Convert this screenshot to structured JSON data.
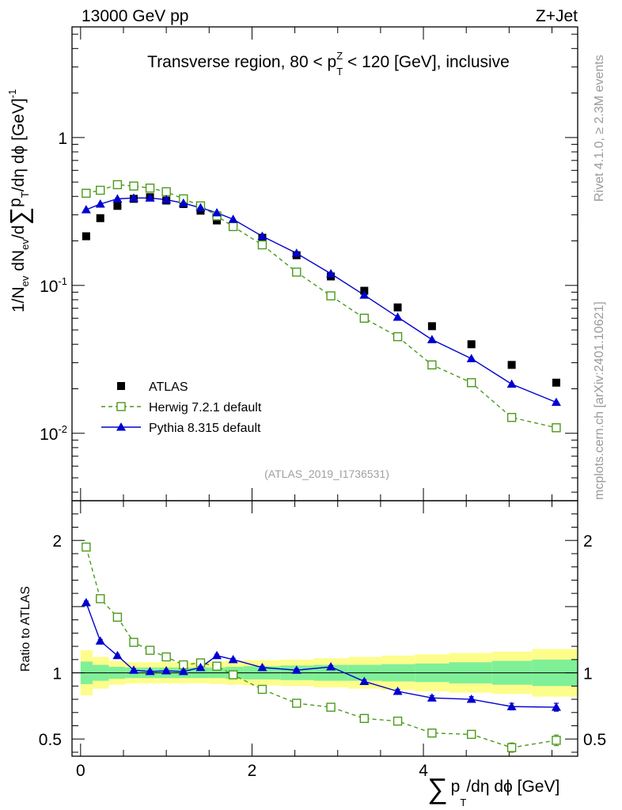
{
  "header": {
    "left": "13000 GeV pp",
    "right": "Z+Jet"
  },
  "side_notes": {
    "rivet": "Rivet 4.1.0, ≥ 2.3M events",
    "mcplots": "mcplots.cern.ch [arXiv:2401.10621]"
  },
  "chart_data": {
    "type": "scatter",
    "title": "Transverse region, 80 < p_T^Z < 120 [GeV], inclusive",
    "title_parts": {
      "pre": "Transverse region, 80 < p",
      "sub": "T",
      "sup": "Z",
      "post": " < 120 [GeV], inclusive"
    },
    "analysis_tag": "(ATLAS_2019_I1736531)",
    "xlabel": {
      "sym": "∑",
      "p": "p",
      "sub": "T",
      "rest": "/dη dϕ [GeV]"
    },
    "ylabel_main": {
      "a": "1/N",
      "a_sub": "ev",
      "b": " dN",
      "b_sub": "ev",
      "c": "/d",
      "sym": "∑",
      "p": "p",
      "p_sub": "T",
      "d": "/dη dϕ  [GeV]",
      "sup": "-1"
    },
    "ylabel_ratio": "Ratio to ATLAS",
    "xlim": [
      -0.1,
      5.8
    ],
    "ylim_main": [
      0.0035,
      5.6
    ],
    "ylim_ratio": [
      0.37,
      2.3
    ],
    "x_ticks": [
      0,
      2,
      4
    ],
    "x_tick_labels": [
      "0",
      "2",
      "4"
    ],
    "main_ticks": [
      {
        "value": 0.01,
        "base": "10",
        "exp": "-2"
      },
      {
        "value": 0.1,
        "base": "10",
        "exp": "-1"
      },
      {
        "value": 1,
        "base": "1",
        "exp": ""
      }
    ],
    "ratio_ticks": [
      {
        "value": 0.5,
        "label": "0.5"
      },
      {
        "value": 1,
        "label": "1"
      },
      {
        "value": 2,
        "label": "2"
      }
    ],
    "x": [
      0.065,
      0.23,
      0.43,
      0.62,
      0.81,
      1.0,
      1.2,
      1.4,
      1.59,
      1.78,
      2.12,
      2.52,
      2.92,
      3.31,
      3.7,
      4.1,
      4.56,
      5.03,
      5.55
    ],
    "bin_edges": [
      0.0,
      0.14,
      0.33,
      0.52,
      0.71,
      0.9,
      1.1,
      1.3,
      1.5,
      1.69,
      1.9,
      2.33,
      2.72,
      3.12,
      3.51,
      3.9,
      4.3,
      4.8,
      5.27,
      5.8
    ],
    "atlas_band_inner": [
      0.085,
      0.06,
      0.045,
      0.04,
      0.04,
      0.04,
      0.04,
      0.04,
      0.04,
      0.045,
      0.05,
      0.055,
      0.06,
      0.06,
      0.065,
      0.07,
      0.08,
      0.09,
      0.1
    ],
    "atlas_band_outer": [
      0.17,
      0.12,
      0.09,
      0.08,
      0.08,
      0.08,
      0.08,
      0.08,
      0.085,
      0.09,
      0.095,
      0.1,
      0.11,
      0.12,
      0.13,
      0.14,
      0.15,
      0.16,
      0.18
    ],
    "series": [
      {
        "name": "ATLAS",
        "color": "#000000",
        "marker": "filled-square",
        "values": [
          0.215,
          0.285,
          0.345,
          0.385,
          0.395,
          0.375,
          0.355,
          0.32,
          0.275,
          0.255,
          0.21,
          0.16,
          0.115,
          0.092,
          0.071,
          0.053,
          0.04,
          0.029,
          0.022
        ]
      },
      {
        "name": "Herwig 7.2.1 default",
        "color": "#4a9a1a",
        "marker": "open-square",
        "line": "dashed",
        "values": [
          0.42,
          0.44,
          0.48,
          0.47,
          0.455,
          0.43,
          0.385,
          0.345,
          0.295,
          0.25,
          0.188,
          0.123,
          0.085,
          0.06,
          0.045,
          0.029,
          0.022,
          0.0128,
          0.0109
        ],
        "ratio": [
          1.95,
          1.56,
          1.42,
          1.23,
          1.17,
          1.12,
          1.06,
          1.075,
          1.05,
          0.985,
          0.875,
          0.77,
          0.74,
          0.655,
          0.635,
          0.545,
          0.535,
          0.435,
          0.49
        ],
        "ratio_err": [
          0.015,
          0.015,
          0.012,
          0.012,
          0.012,
          0.012,
          0.012,
          0.012,
          0.012,
          0.012,
          0.012,
          0.012,
          0.012,
          0.012,
          0.012,
          0.015,
          0.025,
          0.035,
          0.04
        ]
      },
      {
        "name": "Pythia 8.315 default",
        "color": "#0000d0",
        "marker": "filled-triangle",
        "line": "solid",
        "values": [
          0.325,
          0.355,
          0.385,
          0.39,
          0.39,
          0.38,
          0.36,
          0.335,
          0.31,
          0.28,
          0.215,
          0.165,
          0.12,
          0.086,
          0.061,
          0.043,
          0.032,
          0.0215,
          0.0162
        ],
        "ratio": [
          1.53,
          1.24,
          1.13,
          1.02,
          1.01,
          1.015,
          1.01,
          1.04,
          1.13,
          1.1,
          1.04,
          1.02,
          1.045,
          0.935,
          0.86,
          0.81,
          0.8,
          0.745,
          0.74
        ],
        "ratio_err": [
          0.012,
          0.012,
          0.01,
          0.01,
          0.01,
          0.01,
          0.01,
          0.01,
          0.01,
          0.01,
          0.01,
          0.01,
          0.01,
          0.012,
          0.015,
          0.018,
          0.02,
          0.025,
          0.03
        ]
      }
    ],
    "legend_position": "left-middle",
    "colors": {
      "band_inner": "#7ff098",
      "band_outer": "#fdfd8c"
    }
  }
}
